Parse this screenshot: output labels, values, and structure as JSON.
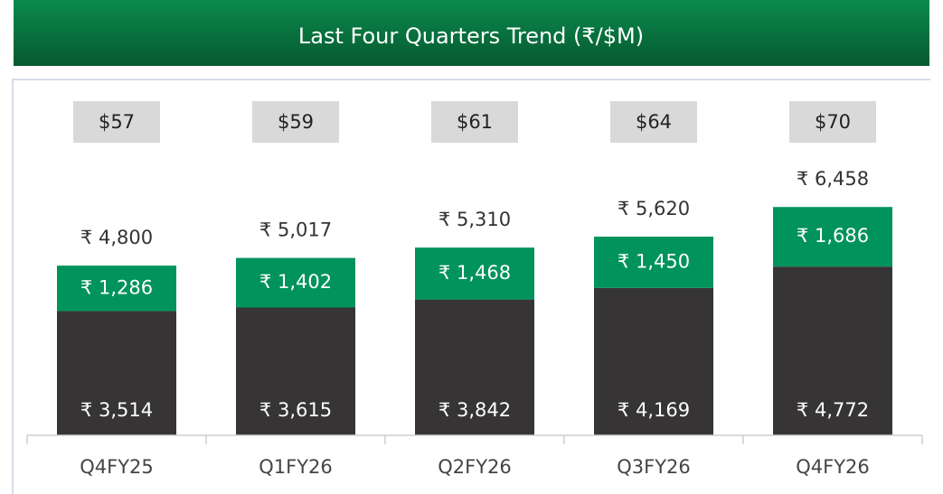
{
  "chart_data": {
    "type": "stacked_bar",
    "title": "Last Four Quarters Trend (₹/$M)",
    "categories": [
      "Q4FY25",
      "Q1FY26",
      "Q2FY26",
      "Q3FY26",
      "Q4FY26"
    ],
    "series": [
      {
        "color": "#363435",
        "values": [
          3514,
          3615,
          3842,
          4169,
          4772
        ],
        "value_labels": [
          "₹ 3,514",
          "₹ 3,615",
          "₹ 3,842",
          "₹ 4,169",
          "₹ 4,772"
        ]
      },
      {
        "color": "#00935c",
        "values": [
          1286,
          1402,
          1468,
          1450,
          1686
        ],
        "value_labels": [
          "₹ 1,286",
          "₹ 1,402",
          "₹ 1,468",
          "₹ 1,450",
          "₹ 1,686"
        ]
      }
    ],
    "totals": [
      4800,
      5017,
      5310,
      5620,
      6458
    ],
    "total_labels": [
      "₹ 4,800",
      "₹ 5,017",
      "₹ 5,310",
      "₹ 5,620",
      "₹ 6,458"
    ],
    "usd_values": [
      57,
      59,
      61,
      64,
      70
    ],
    "usd_labels": [
      "$57",
      "$59",
      "$61",
      "$64",
      "$70"
    ],
    "ylim": [
      0,
      7000
    ]
  }
}
